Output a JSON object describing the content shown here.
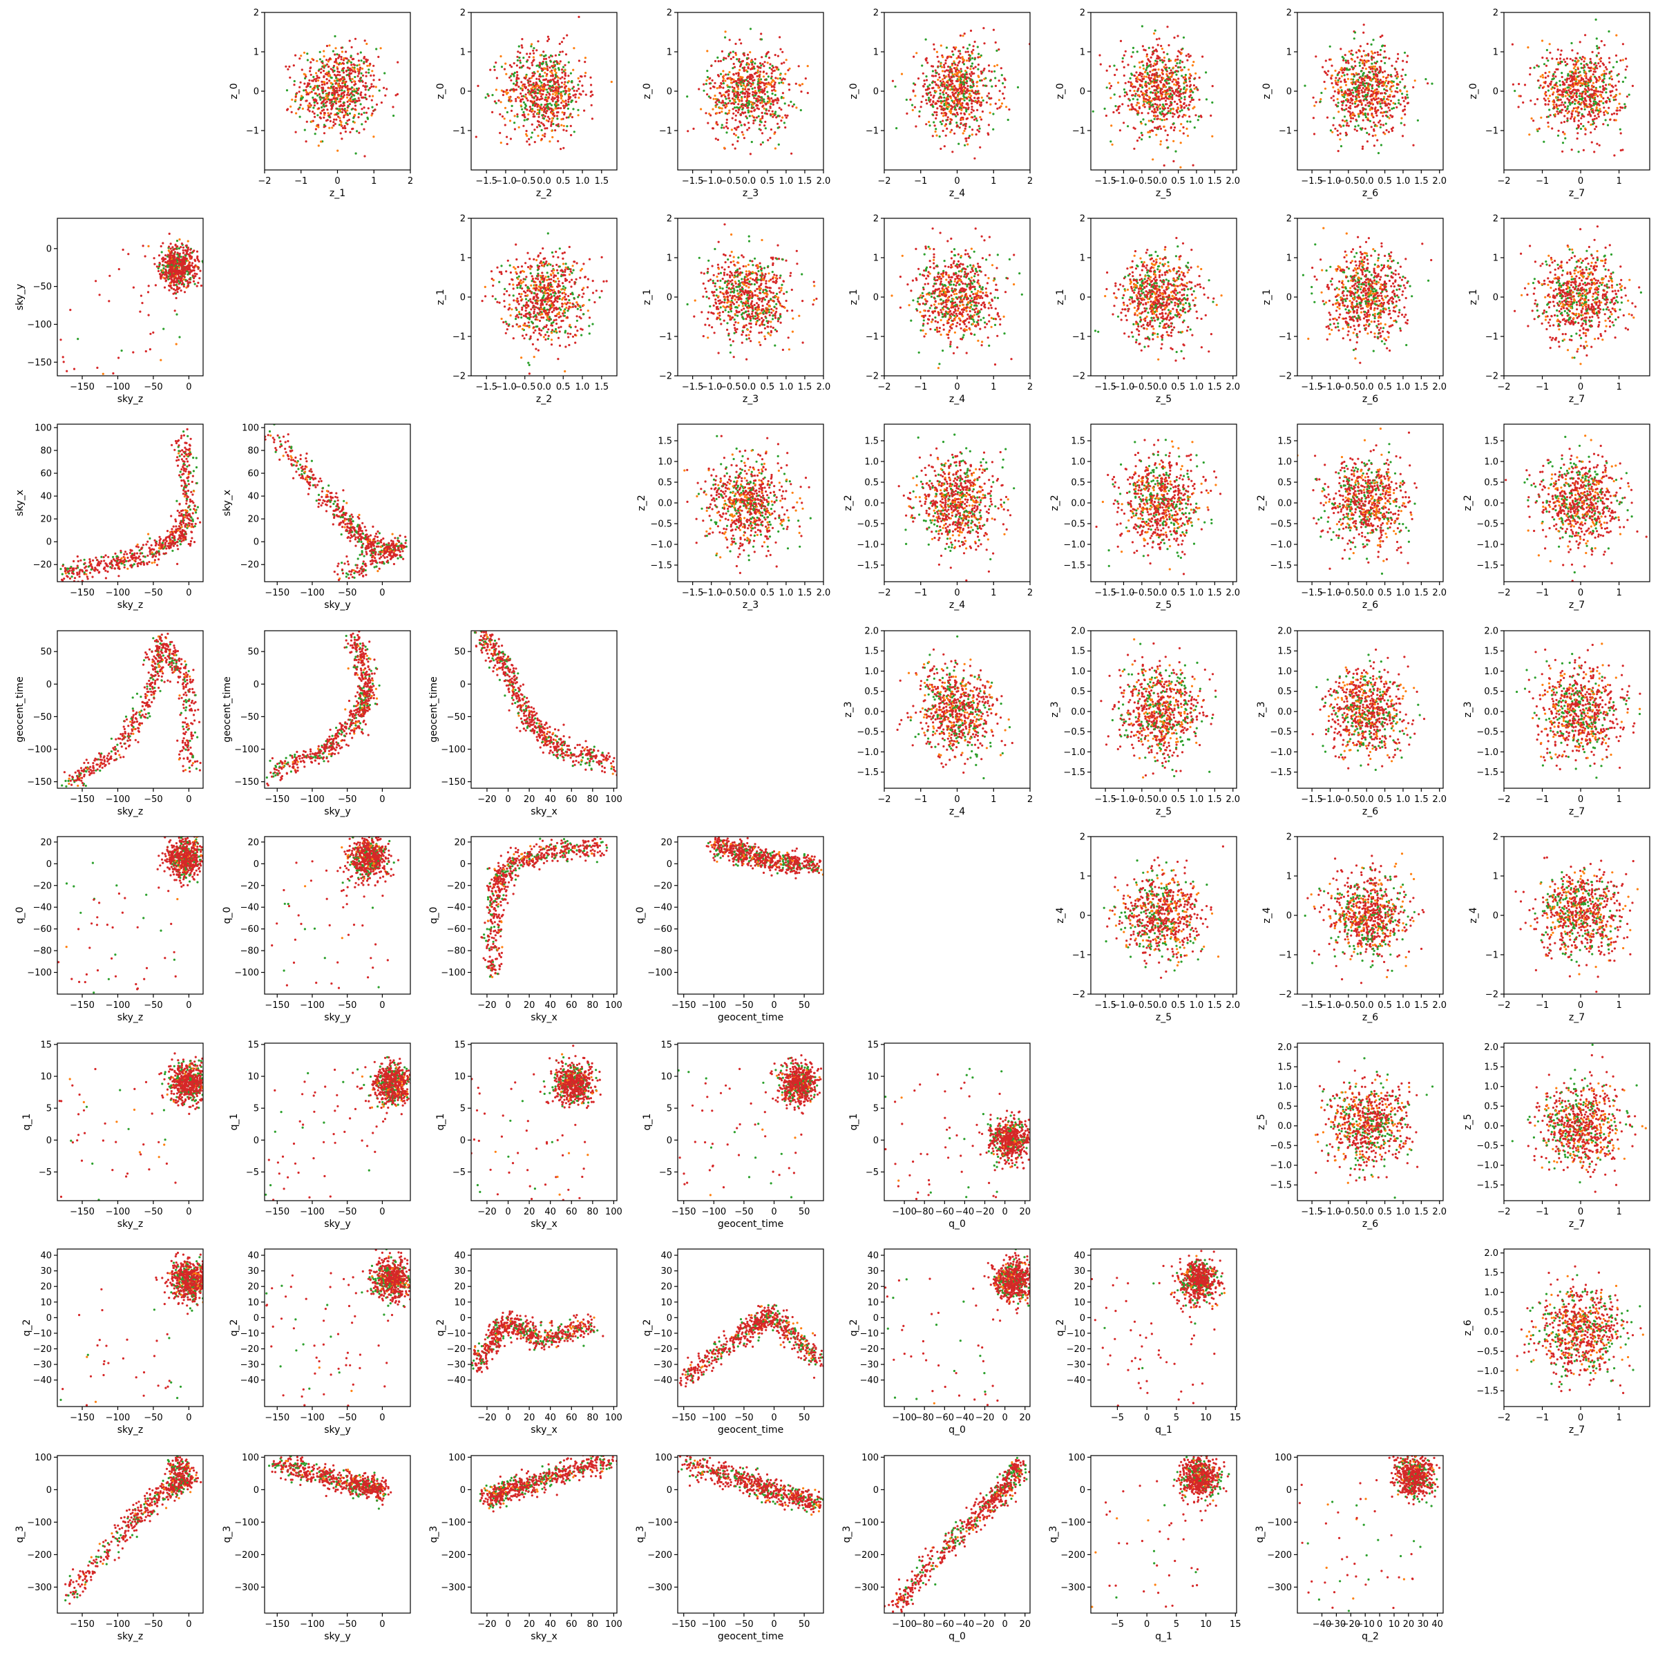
{
  "palette": {
    "green": "#2ca02c",
    "orange": "#ff7f0e",
    "red": "#d62728"
  },
  "chart_data": {
    "type": "scatter",
    "layout": "corner-plot, 8x8 grid; upper triangle pairs latent z variables, lower triangle pairs physical parameters; diagonal empty",
    "series": [
      {
        "color": "#2ca02c"
      },
      {
        "color": "#ff7f0e"
      },
      {
        "color": "#d62728"
      }
    ],
    "latent_variables": {
      "z_0": {
        "label": "z_0",
        "range": [
          -2,
          2
        ],
        "ticks": [
          -1,
          0,
          1,
          2
        ]
      },
      "z_1": {
        "label": "z_1",
        "range": [
          -2,
          2
        ],
        "ticks": [
          -2,
          -1,
          0,
          1,
          2
        ]
      },
      "z_2": {
        "label": "z_2",
        "range": [
          -1.9,
          1.9
        ],
        "ticks": [
          -1.5,
          -1.0,
          -0.5,
          0.0,
          0.5,
          1.0,
          1.5
        ]
      },
      "z_3": {
        "label": "z_3",
        "range": [
          -1.9,
          2.0
        ],
        "ticks": [
          -1.5,
          -1.0,
          -0.5,
          0.0,
          0.5,
          1.0,
          1.5,
          2.0
        ]
      },
      "z_4": {
        "label": "z_4",
        "range": [
          -2,
          2
        ],
        "ticks": [
          -2,
          -1,
          0,
          1,
          2
        ]
      },
      "z_5": {
        "label": "z_5",
        "range": [
          -1.9,
          2.1
        ],
        "ticks": [
          -1.5,
          -1.0,
          -0.5,
          0.0,
          0.5,
          1.0,
          1.5,
          2.0
        ]
      },
      "z_6": {
        "label": "z_6",
        "range": [
          -1.9,
          2.1
        ],
        "ticks": [
          -1.5,
          -1.0,
          -0.5,
          0.0,
          0.5,
          1.0,
          1.5,
          2.0
        ]
      },
      "z_7": {
        "label": "z_7",
        "range": [
          -2,
          1.8
        ],
        "ticks": [
          -2,
          -1,
          0,
          1
        ]
      }
    },
    "physical_variables": {
      "sky_z": {
        "label": "sky_z",
        "range": [
          -185,
          20
        ],
        "ticks": [
          -150,
          -100,
          -50,
          0
        ]
      },
      "sky_y": {
        "label": "sky_y",
        "range": [
          -168,
          40
        ],
        "ticks": [
          -150,
          -100,
          -50,
          0
        ]
      },
      "sky_x": {
        "label": "sky_x",
        "range": [
          -35,
          103
        ],
        "ticks": [
          -20,
          0,
          20,
          40,
          60,
          80,
          100
        ]
      },
      "geocent_time": {
        "label": "geocent_time",
        "range": [
          -160,
          82
        ],
        "ticks": [
          -150,
          -100,
          -50,
          0,
          50
        ]
      },
      "q_0": {
        "label": "q_0",
        "range": [
          -120,
          25
        ],
        "ticks": [
          -100,
          -80,
          -60,
          -40,
          -20,
          0,
          20
        ]
      },
      "q_1": {
        "label": "q_1",
        "range": [
          -9.5,
          15.2
        ],
        "ticks": [
          -5,
          0,
          5,
          10,
          15
        ]
      },
      "q_2": {
        "label": "q_2",
        "range": [
          -57,
          44
        ],
        "ticks": [
          -40,
          -30,
          -20,
          -10,
          0,
          10,
          20,
          30,
          40
        ]
      },
      "q_3": {
        "label": "q_3",
        "range": [
          -380,
          105
        ],
        "ticks": [
          -300,
          -200,
          -100,
          0,
          100
        ]
      }
    },
    "upper_panels": [
      {
        "row": 0,
        "y": "z_0",
        "x": [
          "z_1",
          "z_2",
          "z_3",
          "z_4",
          "z_5",
          "z_6",
          "z_7"
        ]
      },
      {
        "row": 1,
        "y": "z_1",
        "x": [
          "z_2",
          "z_3",
          "z_4",
          "z_5",
          "z_6",
          "z_7"
        ]
      },
      {
        "row": 2,
        "y": "z_2",
        "x": [
          "z_3",
          "z_4",
          "z_5",
          "z_6",
          "z_7"
        ]
      },
      {
        "row": 3,
        "y": "z_3",
        "x": [
          "z_4",
          "z_5",
          "z_6",
          "z_7"
        ]
      },
      {
        "row": 4,
        "y": "z_4",
        "x": [
          "z_5",
          "z_6",
          "z_7"
        ]
      },
      {
        "row": 5,
        "y": "z_5",
        "x": [
          "z_6",
          "z_7"
        ]
      },
      {
        "row": 6,
        "y": "z_6",
        "x": [
          "z_7"
        ]
      }
    ],
    "lower_panels": [
      {
        "row": 1,
        "y": "sky_y",
        "x": [
          "sky_z"
        ]
      },
      {
        "row": 2,
        "y": "sky_x",
        "x": [
          "sky_z",
          "sky_y"
        ]
      },
      {
        "row": 3,
        "y": "geocent_time",
        "x": [
          "sky_z",
          "sky_y",
          "sky_x"
        ]
      },
      {
        "row": 4,
        "y": "q_0",
        "x": [
          "sky_z",
          "sky_y",
          "sky_x",
          "geocent_time"
        ]
      },
      {
        "row": 5,
        "y": "q_1",
        "x": [
          "sky_z",
          "sky_y",
          "sky_x",
          "geocent_time",
          "q_0"
        ]
      },
      {
        "row": 6,
        "y": "q_2",
        "x": [
          "sky_z",
          "sky_y",
          "sky_x",
          "geocent_time",
          "q_0",
          "q_1"
        ]
      },
      {
        "row": 7,
        "y": "q_3",
        "x": [
          "sky_z",
          "sky_y",
          "sky_x",
          "geocent_time",
          "q_0",
          "q_1",
          "q_2"
        ]
      }
    ],
    "trends": {
      "sky_y|sky_z": {
        "center": [
          -15,
          -25
        ],
        "spread": [
          15,
          22
        ],
        "tail": [
          -150,
          -130
        ]
      },
      "sky_x|sky_z": {
        "curve": [
          [
            -180,
            -30
          ],
          [
            -100,
            -18
          ],
          [
            -50,
            -8
          ],
          [
            -10,
            5
          ],
          [
            0,
            30
          ],
          [
            -10,
            95
          ]
        ]
      },
      "sky_x|sky_y": {
        "curve": [
          [
            -160,
            95
          ],
          [
            -80,
            40
          ],
          [
            -40,
            10
          ],
          [
            -10,
            -5
          ],
          [
            30,
            -5
          ],
          [
            -60,
            -30
          ]
        ]
      },
      "geocent_time|sky_z": {
        "curve": [
          [
            -170,
            -155
          ],
          [
            -100,
            -100
          ],
          [
            -50,
            -10
          ],
          [
            -40,
            70
          ],
          [
            0,
            0
          ],
          [
            0,
            -130
          ]
        ]
      },
      "geocent_time|sky_y": {
        "curve": [
          [
            -160,
            -140
          ],
          [
            -80,
            -100
          ],
          [
            -30,
            -50
          ],
          [
            -20,
            0
          ],
          [
            -40,
            70
          ]
        ]
      },
      "geocent_time|sky_x": {
        "curve": [
          [
            -25,
            75
          ],
          [
            0,
            20
          ],
          [
            20,
            -60
          ],
          [
            50,
            -100
          ],
          [
            95,
            -120
          ]
        ]
      },
      "q_0|sky_z": {
        "center": [
          -5,
          5
        ],
        "tail": [
          -170,
          -105
        ]
      },
      "q_0|sky_y": {
        "center": [
          -20,
          5
        ],
        "tail": [
          -160,
          -110
        ]
      },
      "q_0|sky_x": {
        "curve": [
          [
            -15,
            -100
          ],
          [
            -10,
            -20
          ],
          [
            0,
            0
          ],
          [
            40,
            12
          ],
          [
            90,
            15
          ]
        ]
      },
      "q_0|geocent_time": {
        "curve": [
          [
            -100,
            18
          ],
          [
            -50,
            10
          ],
          [
            0,
            2
          ],
          [
            70,
            -2
          ]
        ],
        "tail": [
          -120,
          -110
        ]
      },
      "q_1|q_0": {
        "center": [
          5,
          0
        ],
        "tail": [
          -110,
          13
        ]
      },
      "q_2|geocent_time": {
        "curve": [
          [
            -150,
            -40
          ],
          [
            -50,
            -10
          ],
          [
            0,
            2
          ],
          [
            75,
            -30
          ]
        ]
      },
      "q_2|sky_x": {
        "curve": [
          [
            -30,
            -30
          ],
          [
            0,
            -2
          ],
          [
            30,
            -15
          ],
          [
            80,
            -5
          ]
        ]
      },
      "q_3|sky_z": {
        "curve": [
          [
            -170,
            -330
          ],
          [
            -80,
            -100
          ],
          [
            -30,
            0
          ],
          [
            0,
            30
          ],
          [
            -20,
            90
          ]
        ]
      },
      "q_3|sky_y": {
        "curve": [
          [
            -150,
            80
          ],
          [
            -50,
            20
          ],
          [
            0,
            0
          ]
        ],
        "tail": [
          -150,
          -330
        ]
      },
      "q_3|sky_x": {
        "curve": [
          [
            -20,
            -30
          ],
          [
            0,
            0
          ],
          [
            30,
            30
          ],
          [
            60,
            60
          ],
          [
            100,
            90
          ]
        ],
        "tail": [
          -20,
          -320
        ]
      },
      "q_3|geocent_time": {
        "curve": [
          [
            -150,
            80
          ],
          [
            -50,
            30
          ],
          [
            0,
            -10
          ],
          [
            75,
            -40
          ]
        ],
        "tail": [
          -100,
          -330
        ]
      },
      "q_3|q_0": {
        "curve": [
          [
            -110,
            -360
          ],
          [
            -60,
            -180
          ],
          [
            -20,
            -60
          ],
          [
            0,
            0
          ],
          [
            15,
            80
          ]
        ]
      }
    }
  }
}
